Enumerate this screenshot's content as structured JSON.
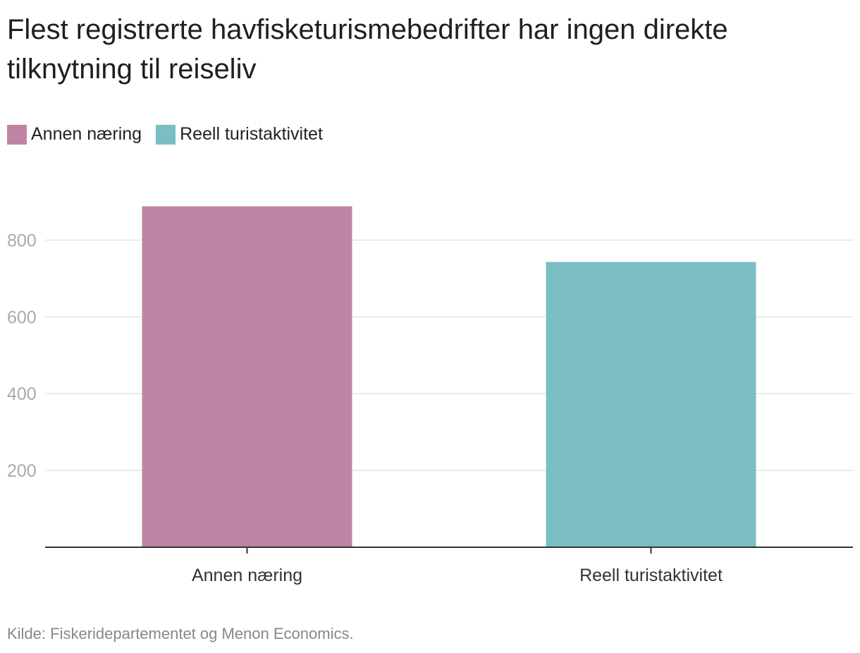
{
  "chart_data": {
    "type": "bar",
    "title": "Flest registrerte havfisketurismebedrifter har ingen direkte tilknytning til reiseliv",
    "categories": [
      "Annen næring",
      "Reell turistaktivitet"
    ],
    "values": [
      888,
      743
    ],
    "colors": [
      "#bf84a4",
      "#7abec3"
    ],
    "legend": [
      {
        "label": "Annen næring",
        "color": "#bf84a4"
      },
      {
        "label": "Reell turistaktivitet",
        "color": "#7abec3"
      }
    ],
    "legend_position": "top-left",
    "yticks": [
      200,
      400,
      600,
      800
    ],
    "ylim": [
      0,
      900
    ],
    "grid": true,
    "xlabel": "",
    "ylabel": ""
  },
  "source": "Kilde: Fiskeridepartementet og Menon Economics.",
  "colors": {
    "grid": "#e3e3e3",
    "axis": "#333333",
    "tick_label": "#aaaaaa",
    "category_label": "#333333"
  }
}
